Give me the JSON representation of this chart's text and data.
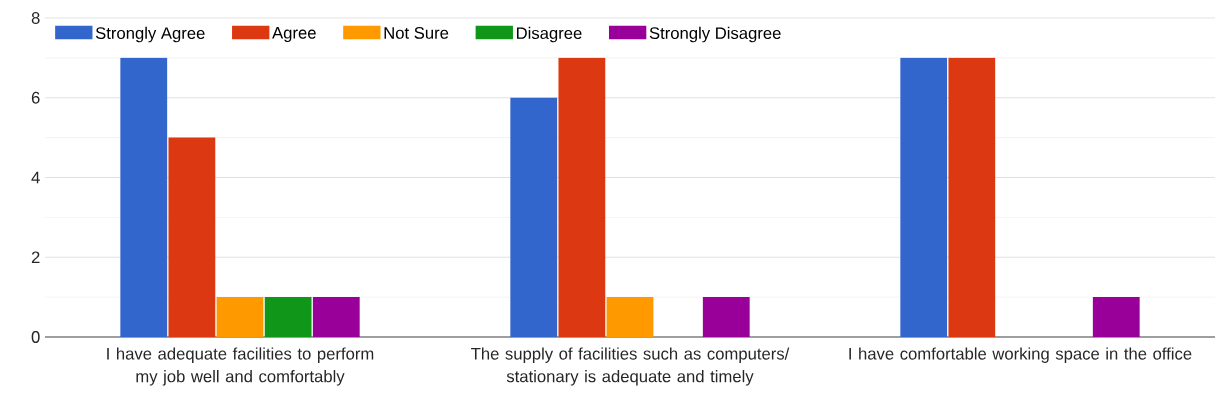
{
  "chart_data": {
    "type": "bar",
    "categories": [
      "I have adequate facilities to perform my job well and comfortably",
      "The supply of facilities such as computers/ stationary is adequate and timely",
      "I have comfortable working space in the office"
    ],
    "series": [
      {
        "name": "Strongly Agree",
        "color": "#3366cc",
        "values": [
          7,
          6,
          7
        ]
      },
      {
        "name": "Agree",
        "color": "#dc3912",
        "values": [
          5,
          7,
          7
        ]
      },
      {
        "name": "Not Sure",
        "color": "#ff9900",
        "values": [
          1,
          1,
          0
        ]
      },
      {
        "name": "Disagree",
        "color": "#109618",
        "values": [
          1,
          0,
          0
        ]
      },
      {
        "name": "Strongly Disagree",
        "color": "#990099",
        "values": [
          1,
          1,
          1
        ]
      }
    ],
    "ylim": [
      0,
      8
    ],
    "yticks": [
      0,
      {
        "value": 1,
        "label": null
      },
      2,
      {
        "value": 3,
        "label": null
      },
      4,
      {
        "value": 5,
        "label": null
      },
      6,
      {
        "value": 7,
        "label": null
      },
      8
    ],
    "grid": "y",
    "legend": "top left"
  }
}
